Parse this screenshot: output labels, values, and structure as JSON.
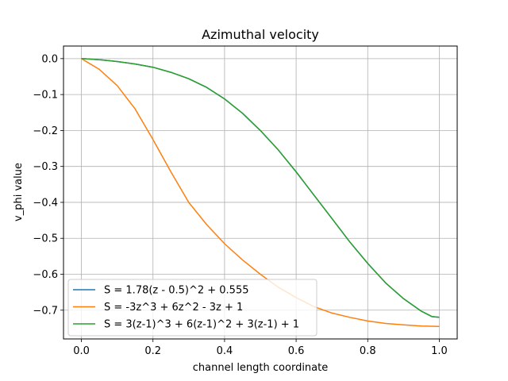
{
  "chart_data": {
    "type": "line",
    "title": "Azimuthal velocity",
    "xlabel": "channel length coordinate",
    "ylabel": "v_phi value",
    "xlim": [
      -0.05,
      1.05
    ],
    "ylim": [
      -0.78,
      0.035
    ],
    "xticks": [
      0.0,
      0.2,
      0.4,
      0.6,
      0.8,
      1.0
    ],
    "xtick_labels": [
      "0.0",
      "0.2",
      "0.4",
      "0.6",
      "0.8",
      "1.0"
    ],
    "yticks": [
      0.0,
      -0.1,
      -0.2,
      -0.3,
      -0.4,
      -0.5,
      -0.6,
      -0.7
    ],
    "ytick_labels": [
      "0.0",
      "−0.1",
      "−0.2",
      "−0.3",
      "−0.4",
      "−0.5",
      "−0.6",
      "−0.7"
    ],
    "grid": true,
    "legend_position": "lower-left",
    "series": [
      {
        "name": "S = 1.78(z - 0.5)^2 + 0.555",
        "color": "#1f77b4",
        "x": [
          0.0,
          0.05,
          0.1,
          0.15,
          0.2,
          0.25,
          0.3,
          0.35,
          0.4,
          0.45,
          0.5,
          0.55,
          0.6,
          0.65,
          0.7,
          0.75,
          0.8,
          0.85,
          0.9,
          0.95,
          0.98,
          1.0
        ],
        "y": [
          0.0,
          -0.003,
          -0.008,
          -0.015,
          -0.024,
          -0.038,
          -0.056,
          -0.08,
          -0.112,
          -0.152,
          -0.2,
          -0.254,
          -0.315,
          -0.38,
          -0.445,
          -0.51,
          -0.57,
          -0.624,
          -0.668,
          -0.703,
          -0.718,
          -0.72
        ]
      },
      {
        "name": "S = -3z^3 + 6z^2 - 3z + 1",
        "color": "#ff7f0e",
        "x": [
          0.0,
          0.05,
          0.1,
          0.15,
          0.2,
          0.25,
          0.3,
          0.35,
          0.4,
          0.45,
          0.5,
          0.55,
          0.6,
          0.65,
          0.7,
          0.75,
          0.8,
          0.85,
          0.9,
          0.95,
          1.0
        ],
        "y": [
          0.0,
          -0.03,
          -0.075,
          -0.14,
          -0.225,
          -0.315,
          -0.4,
          -0.462,
          -0.515,
          -0.56,
          -0.6,
          -0.636,
          -0.665,
          -0.69,
          -0.708,
          -0.72,
          -0.73,
          -0.737,
          -0.741,
          -0.744,
          -0.745
        ]
      },
      {
        "name": "S = 3(z-1)^3 + 6(z-1)^2 + 3(z-1) + 1",
        "color": "#2ca02c",
        "x": [
          0.0,
          0.05,
          0.1,
          0.15,
          0.2,
          0.25,
          0.3,
          0.35,
          0.4,
          0.45,
          0.5,
          0.55,
          0.6,
          0.65,
          0.7,
          0.75,
          0.8,
          0.85,
          0.9,
          0.95,
          0.98,
          1.0
        ],
        "y": [
          0.0,
          -0.003,
          -0.008,
          -0.015,
          -0.024,
          -0.038,
          -0.056,
          -0.08,
          -0.112,
          -0.152,
          -0.2,
          -0.254,
          -0.315,
          -0.38,
          -0.445,
          -0.51,
          -0.57,
          -0.624,
          -0.668,
          -0.703,
          -0.718,
          -0.72
        ]
      }
    ]
  }
}
